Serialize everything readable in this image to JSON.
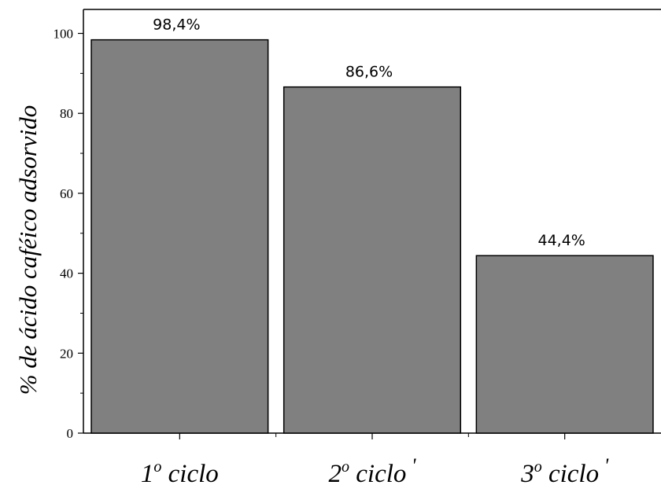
{
  "chart_data": {
    "type": "bar",
    "title": "",
    "xlabel": "",
    "ylabel": "% de ácido caféico adsorvido",
    "categories": [
      "1º ciclo",
      "2º ciclo",
      "3º ciclo"
    ],
    "category_display": [
      {
        "num": "1",
        "sup": "o",
        "rest": " ciclo",
        "mark": ""
      },
      {
        "num": "2",
        "sup": "o",
        "rest": " ciclo",
        "mark": "'"
      },
      {
        "num": "3",
        "sup": "o",
        "rest": " ciclo",
        "mark": "'"
      }
    ],
    "values": [
      98.4,
      86.6,
      44.4
    ],
    "data_labels": [
      "98,4%",
      "86,6%",
      "44,4%"
    ],
    "ylim": [
      0,
      106
    ],
    "yticks": [
      0,
      20,
      40,
      60,
      80,
      100
    ],
    "grid": false,
    "legend": "none",
    "bar_color": "#808080",
    "bar_edge_color": "#000000"
  }
}
